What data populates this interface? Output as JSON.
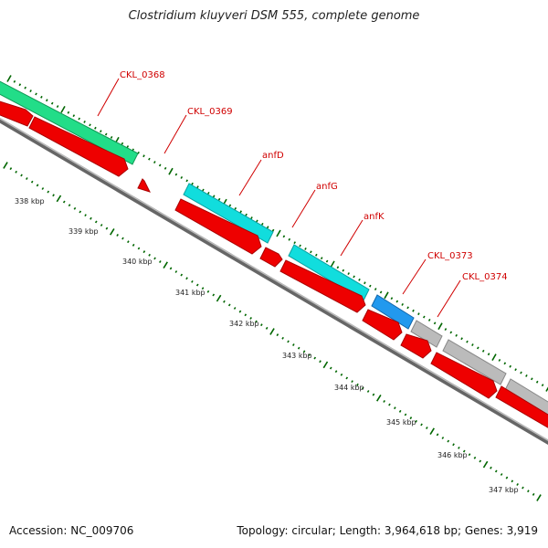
{
  "title": "Clostridium kluyveri DSM 555, complete genome",
  "footer": {
    "accession": "Accession: NC_009706",
    "summary": "Topology: circular; Length: 3,964,618 bp; Genes: 3,919"
  },
  "colors": {
    "cds": "#ee0000",
    "backbone": "#888888",
    "tick": "#006600",
    "label": "#d00000",
    "feature_green": "#22dd88",
    "feature_cyan": "#11dddd",
    "feature_blue": "#2299ee",
    "feature_gray": "#bbbbbb"
  },
  "kbp_labels": [
    "338 kbp",
    "339 kbp",
    "340 kbp",
    "341 kbp",
    "342 kbp",
    "343 kbp",
    "344 kbp",
    "345 kbp",
    "346 kbp",
    "347 kbp"
  ],
  "gene_labels": [
    {
      "text": "CKL_0368"
    },
    {
      "text": "CKL_0369"
    },
    {
      "text": "anfD"
    },
    {
      "text": "anfG"
    },
    {
      "text": "anfK"
    },
    {
      "text": "CKL_0373"
    },
    {
      "text": "CKL_0374"
    }
  ]
}
